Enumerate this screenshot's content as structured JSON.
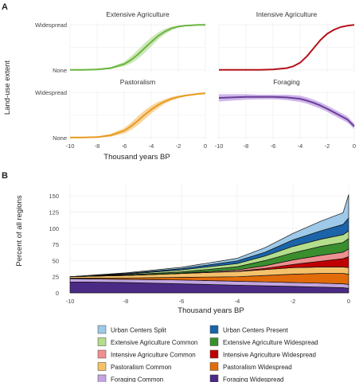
{
  "panels": {
    "a_label": "A",
    "b_label": "B"
  },
  "chart_data": [
    {
      "type": "line",
      "panel": "A",
      "ylabel": "Land-use extent",
      "xlabel": "Thousand years BP",
      "y_tick_labels": [
        "Widespread",
        "None"
      ],
      "x_ticks": [
        -10,
        -8,
        -6,
        -4,
        -2,
        0
      ],
      "xlim": [
        -10,
        0
      ],
      "ylim": [
        0,
        1
      ],
      "facets": [
        {
          "title": "Extensive Agriculture",
          "color": "#6ab43e",
          "band_color": "#c4e4ae",
          "x": [
            -10,
            -9,
            -8,
            -7,
            -6,
            -5.5,
            -5,
            -4.5,
            -4,
            -3.5,
            -3,
            -2.5,
            -2,
            -1.5,
            -1,
            -0.5,
            0
          ],
          "y": [
            0.0,
            0.0,
            0.01,
            0.04,
            0.13,
            0.22,
            0.34,
            0.48,
            0.62,
            0.75,
            0.85,
            0.92,
            0.96,
            0.98,
            0.99,
            1.0,
            1.0
          ],
          "band": [
            0.0,
            0.0,
            0.01,
            0.02,
            0.05,
            0.08,
            0.1,
            0.11,
            0.1,
            0.08,
            0.06,
            0.04,
            0.02,
            0.01,
            0.0,
            0.0,
            0.0
          ]
        },
        {
          "title": "Intensive Agriculture",
          "color": "#b5121b",
          "band_color": "#ec9a9e",
          "x": [
            -10,
            -9,
            -8,
            -7,
            -6,
            -5,
            -4.5,
            -4,
            -3.5,
            -3,
            -2.5,
            -2,
            -1.5,
            -1,
            -0.5,
            0
          ],
          "y": [
            0.0,
            0.0,
            0.0,
            0.0,
            0.01,
            0.04,
            0.08,
            0.16,
            0.3,
            0.48,
            0.66,
            0.8,
            0.89,
            0.95,
            0.98,
            1.0
          ],
          "band": [
            0.0,
            0.0,
            0.0,
            0.0,
            0.0,
            0.01,
            0.01,
            0.02,
            0.02,
            0.02,
            0.02,
            0.02,
            0.01,
            0.01,
            0.0,
            0.0
          ]
        },
        {
          "title": "Pastoralism",
          "color": "#e99a1f",
          "band_color": "#f6cf8f",
          "x": [
            -10,
            -9,
            -8,
            -7,
            -6,
            -5.5,
            -5,
            -4.5,
            -4,
            -3.5,
            -3,
            -2.5,
            -2,
            -1.5,
            -1,
            -0.5,
            0
          ],
          "y": [
            0.0,
            0.0,
            0.01,
            0.05,
            0.15,
            0.25,
            0.37,
            0.5,
            0.62,
            0.72,
            0.8,
            0.86,
            0.9,
            0.93,
            0.95,
            0.97,
            0.98
          ],
          "band": [
            0.0,
            0.0,
            0.01,
            0.03,
            0.06,
            0.08,
            0.1,
            0.1,
            0.09,
            0.07,
            0.05,
            0.04,
            0.03,
            0.02,
            0.01,
            0.01,
            0.01
          ]
        },
        {
          "title": "Foraging",
          "color": "#6a3d9a",
          "band_color": "#c7a9e4",
          "x": [
            -10,
            -9,
            -8,
            -7,
            -6,
            -5,
            -4,
            -3.5,
            -3,
            -2.5,
            -2,
            -1.5,
            -1,
            -0.5,
            0
          ],
          "y": [
            0.88,
            0.89,
            0.9,
            0.9,
            0.9,
            0.89,
            0.86,
            0.82,
            0.77,
            0.71,
            0.64,
            0.56,
            0.48,
            0.4,
            0.25
          ],
          "band": [
            0.08,
            0.07,
            0.06,
            0.05,
            0.05,
            0.06,
            0.07,
            0.07,
            0.07,
            0.07,
            0.07,
            0.07,
            0.07,
            0.07,
            0.06
          ]
        }
      ]
    },
    {
      "type": "area",
      "panel": "B",
      "stacked": true,
      "ylabel": "Percent of all regions",
      "xlabel": "Thousand years BP",
      "x_ticks": [
        -10,
        -8,
        -6,
        -4,
        -2,
        0
      ],
      "y_ticks": [
        0,
        25,
        50,
        75,
        100,
        125,
        150
      ],
      "xlim": [
        -10,
        0
      ],
      "ylim": [
        0,
        170
      ],
      "legend_position": "bottom",
      "x": [
        -10,
        -8,
        -6,
        -4,
        -3,
        -2,
        -1,
        -0.2,
        0
      ],
      "series": [
        {
          "name": "Foraging Widespread",
          "color": "#4b2a86",
          "values": [
            17,
            16,
            14,
            12,
            11,
            10,
            9,
            8,
            7
          ]
        },
        {
          "name": "Foraging Common",
          "color": "#c2a5e0",
          "values": [
            5,
            5,
            6,
            6,
            6,
            6,
            6,
            6,
            6
          ]
        },
        {
          "name": "Pastoralism Widespread",
          "color": "#e36c0a",
          "values": [
            1,
            2,
            4,
            7,
            10,
            13,
            15,
            16,
            16
          ]
        },
        {
          "name": "Pastoralism Common",
          "color": "#f5c26b",
          "values": [
            2,
            4,
            6,
            8,
            9,
            10,
            10,
            10,
            10
          ]
        },
        {
          "name": "Intensive Agriculture Widespread",
          "color": "#c00000",
          "values": [
            0,
            0,
            0,
            0.5,
            2,
            5,
            9,
            13,
            17
          ]
        },
        {
          "name": "Intensive Agriculture Common",
          "color": "#ee9090",
          "values": [
            0,
            0,
            0.5,
            2,
            4,
            7,
            9,
            10,
            12
          ]
        },
        {
          "name": "Extensive Agriculture Widespread",
          "color": "#3a8e2e",
          "values": [
            0,
            1,
            2,
            5,
            8,
            11,
            14,
            15,
            16
          ]
        },
        {
          "name": "Extensive Agriculture Common",
          "color": "#b4dd8c",
          "values": [
            0,
            1,
            3,
            5,
            7,
            10,
            11,
            12,
            12
          ]
        },
        {
          "name": "Urban Centers Present",
          "color": "#1b64a9",
          "values": [
            0,
            1,
            2,
            4,
            6,
            10,
            13,
            16,
            20
          ]
        },
        {
          "name": "Urban Centers Split",
          "color": "#9ec9e8",
          "values": [
            0,
            1,
            2,
            4,
            7,
            10,
            15,
            18,
            36
          ]
        }
      ],
      "legend_order": [
        "Urban Centers Split",
        "Urban Centers Present",
        "Extensive Agriculture Common",
        "Extensive Agriculture Widespread",
        "Intensive Agriculture Common",
        "Intensive Agriculture Widespread",
        "Pastoralism Common",
        "Pastoralism Widespread",
        "Foraging Common",
        "Foraging Widespread"
      ]
    }
  ]
}
